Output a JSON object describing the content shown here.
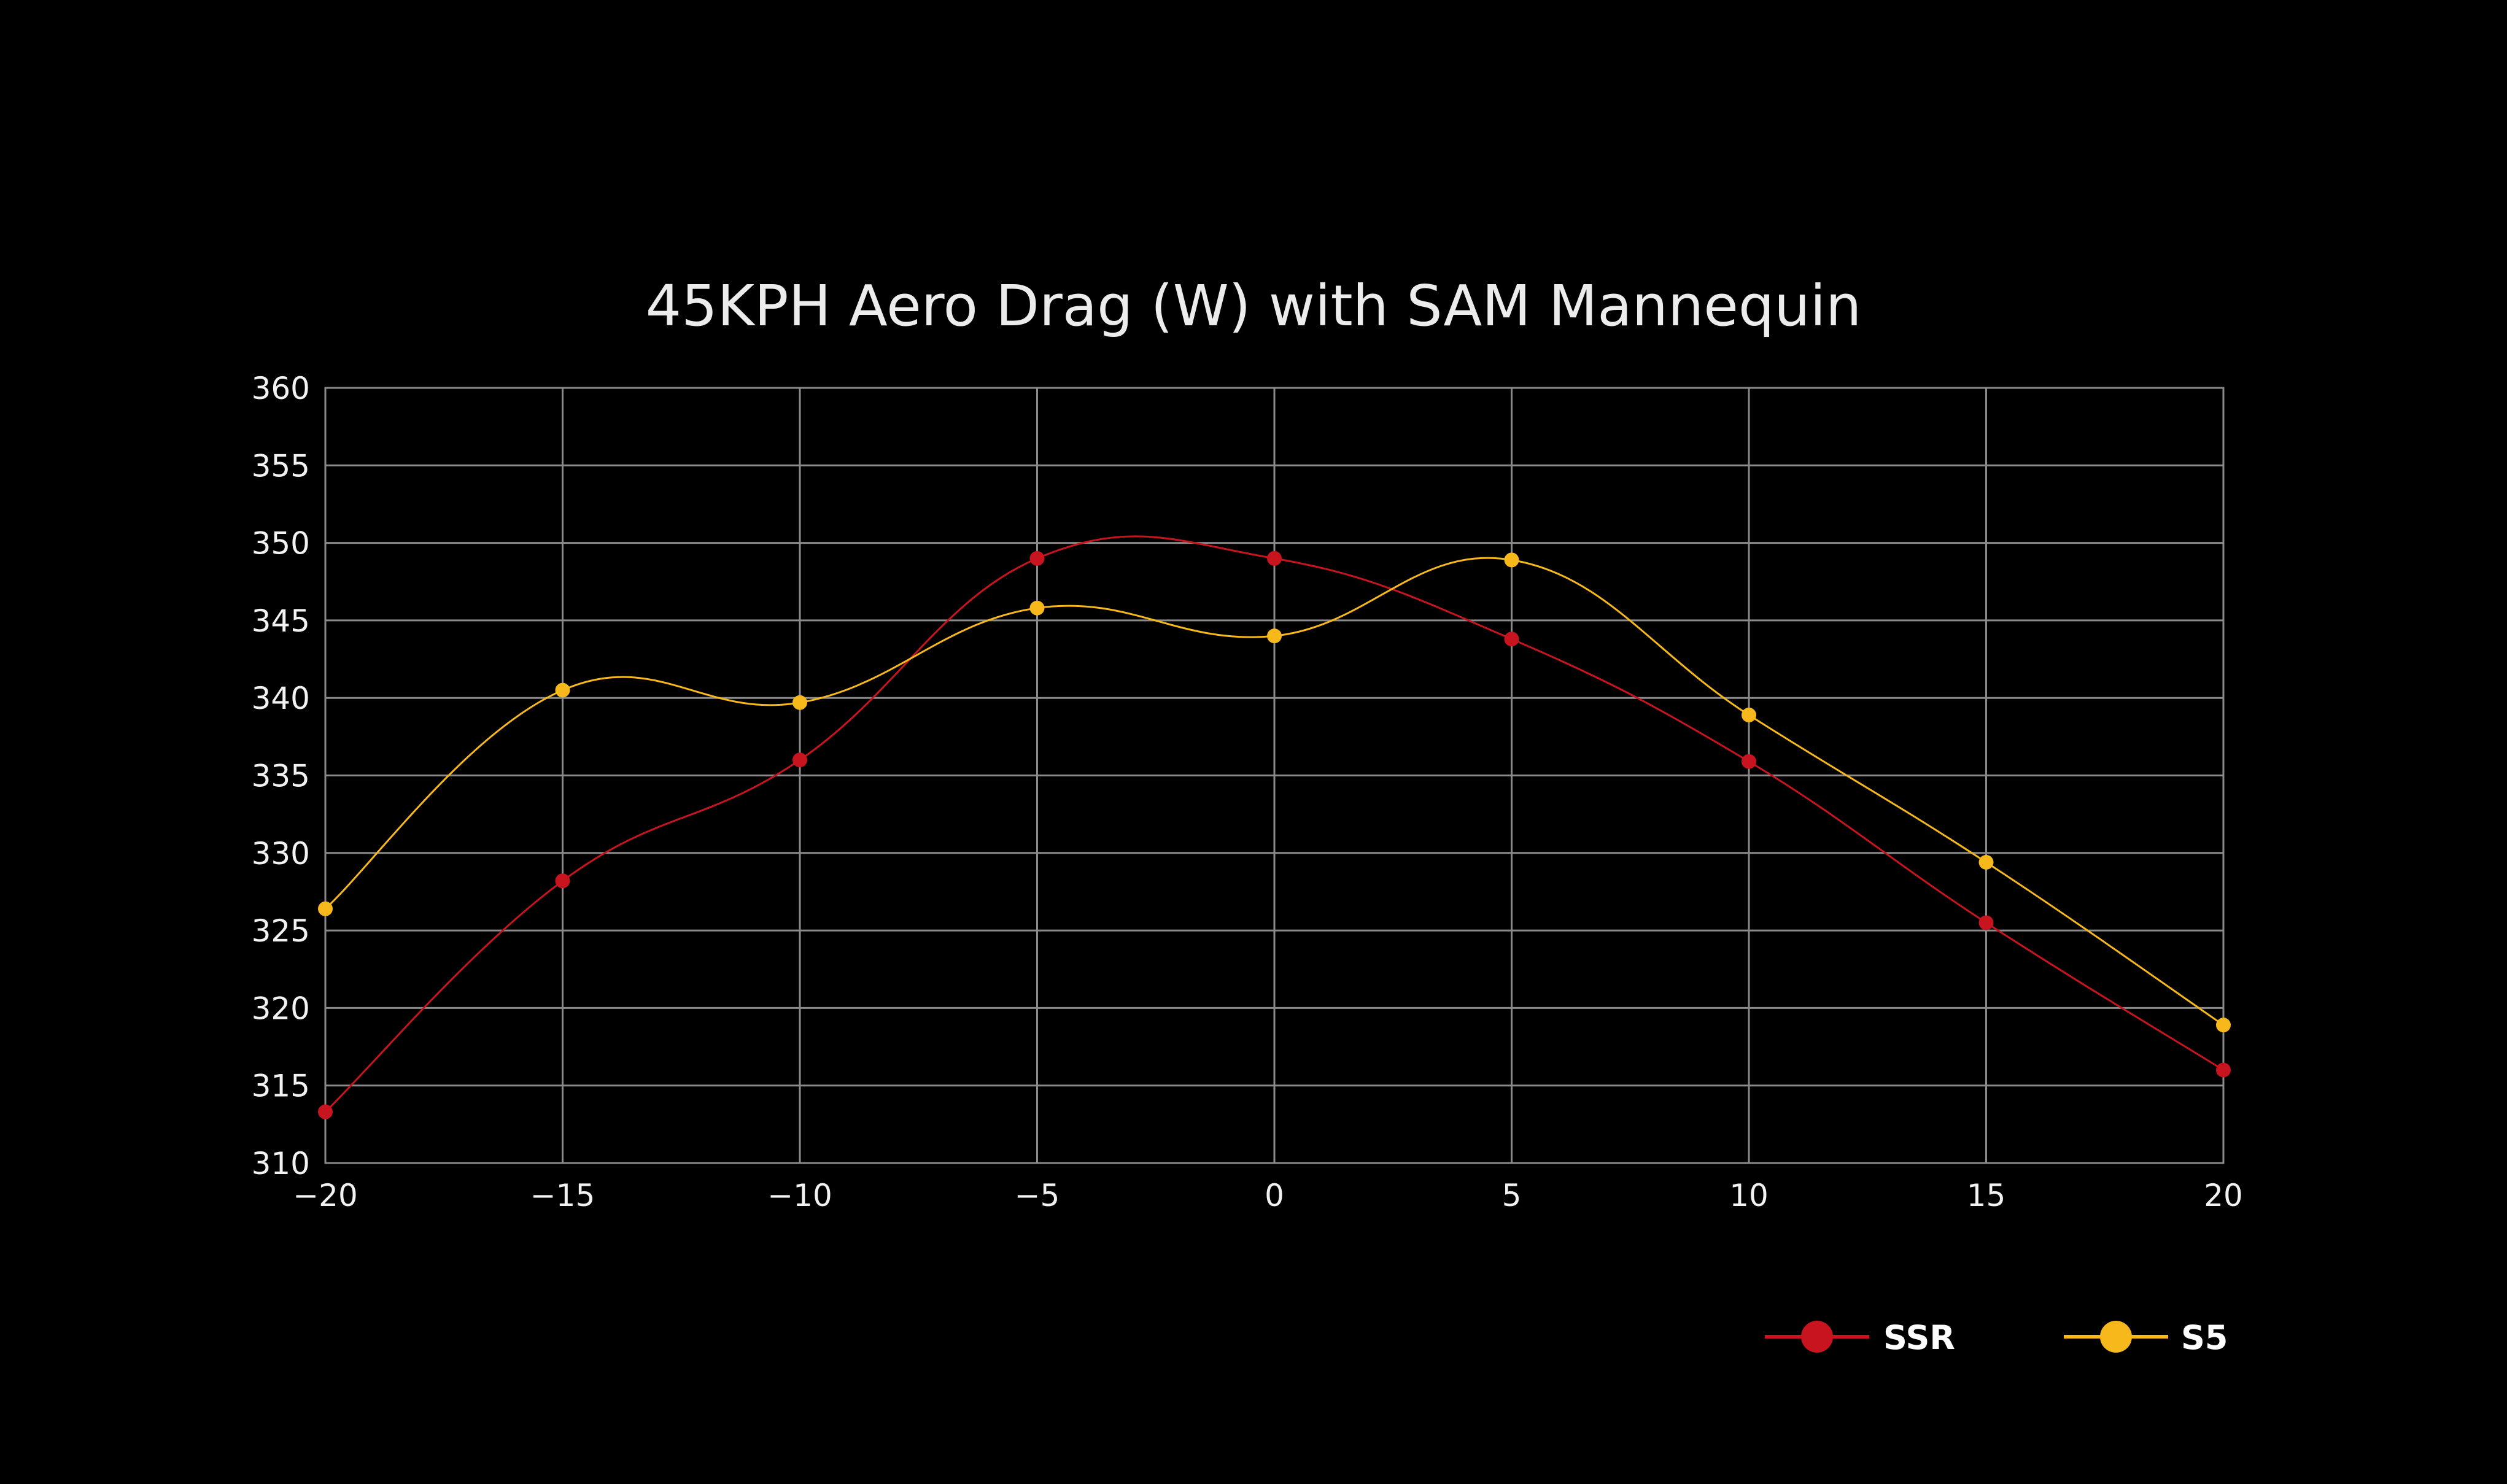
{
  "colors": {
    "background": "#000000",
    "grid": "#8a8a8a",
    "ssr": "#c8141e",
    "s5": "#f7b81c"
  },
  "chart_data": {
    "type": "line",
    "title": "45KPH Aero Drag (W) with SAM Mannequin",
    "xlabel": "",
    "ylabel": "",
    "x": [
      -20,
      -15,
      -10,
      -5,
      0,
      5,
      10,
      15,
      20
    ],
    "x_tick_labels": [
      "−20",
      "−15",
      "−10",
      "−5",
      "0",
      "5",
      "10",
      "15",
      "20"
    ],
    "xlim": [
      -20,
      20
    ],
    "ylim": [
      310,
      360
    ],
    "y_ticks": [
      310,
      315,
      320,
      325,
      330,
      335,
      340,
      345,
      350,
      355,
      360
    ],
    "y_tick_labels": [
      "310",
      "315",
      "320",
      "325",
      "330",
      "335",
      "340",
      "345",
      "350",
      "355",
      "360"
    ],
    "grid": true,
    "smooth": true,
    "legend_position": "bottom-right",
    "series": [
      {
        "name": "SSR",
        "color": "#c8141e",
        "values": [
          313.3,
          328.2,
          336.0,
          349.0,
          349.0,
          343.8,
          335.9,
          325.5,
          316.0
        ]
      },
      {
        "name": "S5",
        "color": "#f7b81c",
        "values": [
          326.4,
          340.5,
          339.7,
          345.8,
          344.0,
          348.9,
          338.9,
          329.4,
          318.9
        ]
      }
    ]
  }
}
